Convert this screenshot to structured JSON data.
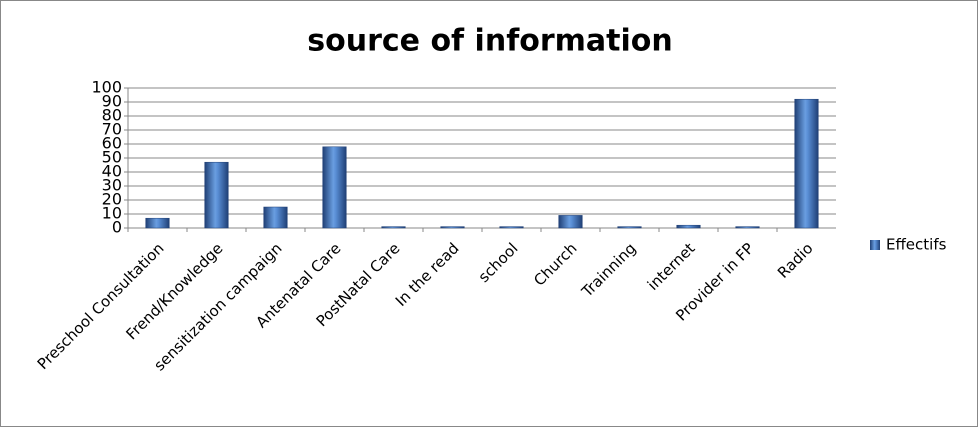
{
  "chart_data": {
    "type": "bar",
    "title": "source of information",
    "categories": [
      "Preschool Consultation",
      "Frend/Knowledge",
      "sensitization campaign",
      "Antenatal Care",
      "PostNatal Care",
      "In the read",
      "school",
      "Church",
      "Trainning",
      "internet",
      "Provider in FP",
      "Radio"
    ],
    "series": [
      {
        "name": "Effectifs",
        "color": "#3a6bb4",
        "values": [
          7,
          47,
          15,
          58,
          1,
          1,
          1,
          9,
          1,
          2,
          1,
          92
        ]
      }
    ],
    "ylim": [
      0,
      100
    ],
    "yticks": [
      0,
      10,
      20,
      30,
      40,
      50,
      60,
      70,
      80,
      90,
      100
    ],
    "grid": true,
    "legend": "right"
  }
}
